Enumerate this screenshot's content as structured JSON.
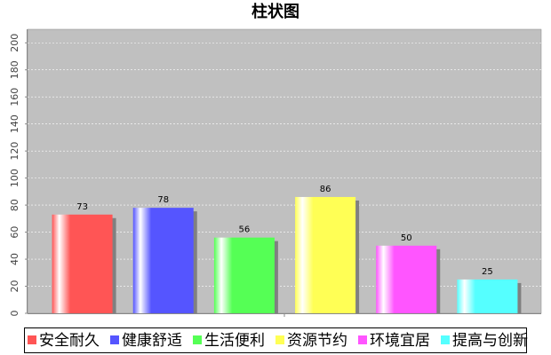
{
  "chart_data": {
    "type": "bar",
    "title": "柱状图",
    "categories": [
      "安全耐久",
      "健康舒适",
      "生活便利",
      "资源节约",
      "环境宜居",
      "提高与创新"
    ],
    "values": [
      73,
      78,
      56,
      86,
      50,
      25
    ],
    "colors": [
      "#ff5555",
      "#5555ff",
      "#55ff55",
      "#ffff55",
      "#ff55ff",
      "#55ffff"
    ],
    "ylim": [
      0,
      210
    ],
    "yticks": [
      0,
      20,
      40,
      60,
      80,
      100,
      120,
      140,
      160,
      180,
      200
    ],
    "grid": true,
    "show_value_labels": true,
    "legend": "bottom"
  }
}
